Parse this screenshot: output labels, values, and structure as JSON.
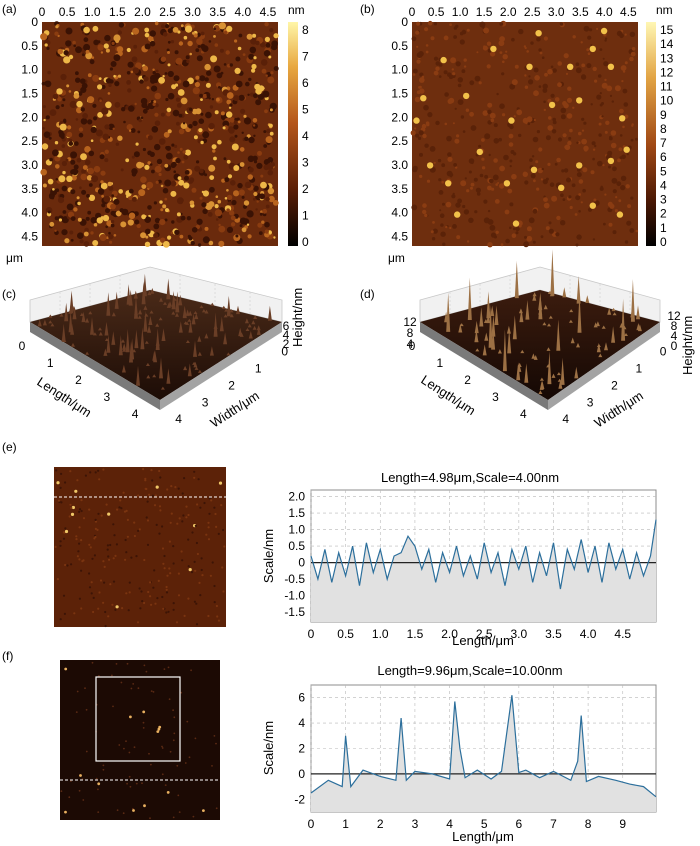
{
  "panels": {
    "a": {
      "label": "(a)",
      "x_ticks": [
        "0",
        "0.5",
        "1.0",
        "1.5",
        "2.0",
        "2.5",
        "3.0",
        "3.5",
        "4.0",
        "4.5"
      ],
      "y_ticks": [
        "0",
        "0.5",
        "1.0",
        "1.5",
        "2.0",
        "2.5",
        "3.0",
        "3.5",
        "4.0",
        "4.5"
      ],
      "unit_corner": "μm",
      "colorbar_unit": "nm",
      "colorbar_ticks": [
        "8",
        "7",
        "6",
        "5",
        "4",
        "3",
        "2",
        "1",
        "0"
      ]
    },
    "b": {
      "label": "(b)",
      "x_ticks": [
        "0",
        "0.5",
        "1.0",
        "1.5",
        "2.0",
        "2.5",
        "3.0",
        "3.5",
        "4.0",
        "4.5"
      ],
      "y_ticks": [
        "0",
        "0.5",
        "1.0",
        "1.5",
        "2.0",
        "2.5",
        "3.0",
        "3.5",
        "4.0",
        "4.5"
      ],
      "unit_corner": "μm",
      "colorbar_unit": "nm",
      "colorbar_ticks": [
        "15",
        "14",
        "13",
        "12",
        "11",
        "10",
        "9",
        "8",
        "7",
        "6",
        "5",
        "4",
        "3",
        "2",
        "1",
        "0"
      ]
    },
    "c": {
      "label": "(c)",
      "length_ticks": [
        "0",
        "1",
        "2",
        "3",
        "4"
      ],
      "width_ticks": [
        "4",
        "3",
        "2",
        "1",
        "0"
      ],
      "height_ticks": [
        "6",
        "4",
        "2"
      ],
      "length_label": "Length/μm",
      "width_label": "Width/μm",
      "height_label": "Height/nm"
    },
    "d": {
      "label": "(d)",
      "length_ticks": [
        "0",
        "1",
        "2",
        "3",
        "4"
      ],
      "width_ticks": [
        "4",
        "3",
        "2",
        "1",
        "0"
      ],
      "height_ticks": [
        "12",
        "8",
        "4"
      ],
      "height_ticks_right": [
        "12",
        "8",
        "4",
        "0"
      ],
      "length_label": "Length/μm",
      "width_label": "Width/μm",
      "height_label": "Height/nm"
    },
    "e": {
      "label": "(e)",
      "title": "Length=4.98μm,Scale=4.00nm",
      "xlabel": "Length/μm",
      "ylabel": "Scale/nm",
      "x_ticks": [
        "0",
        "0.5",
        "1.0",
        "1.5",
        "2.0",
        "2.5",
        "3.0",
        "3.5",
        "4.0",
        "4.5"
      ],
      "y_ticks": [
        "2.0",
        "1.5",
        "1.0",
        "0.5",
        "0",
        "-0.5",
        "-1.0",
        "-1.5"
      ]
    },
    "f": {
      "label": "(f)",
      "title": "Length=9.96μm,Scale=10.00nm",
      "xlabel": "Length/μm",
      "ylabel": "Scale/nm",
      "x_ticks": [
        "0",
        "1",
        "2",
        "3",
        "4",
        "5",
        "6",
        "7",
        "8",
        "9"
      ],
      "y_ticks": [
        "6",
        "4",
        "2",
        "0",
        "-2"
      ]
    }
  },
  "colors": {
    "afm_dark": "#2a0f05",
    "afm_mid": "#8a3d10",
    "afm_bright": "#f4c040",
    "profile_line": "#2c6f9c",
    "profile_fill": "#e1e1e1"
  },
  "chart_data": [
    {
      "panel": "a",
      "type": "heatmap",
      "x_range_um": [
        0,
        4.7
      ],
      "y_range_um": [
        0,
        4.7
      ],
      "z_range_nm": [
        0,
        8.5
      ]
    },
    {
      "panel": "b",
      "type": "heatmap",
      "x_range_um": [
        0,
        4.7
      ],
      "y_range_um": [
        0,
        4.7
      ],
      "z_range_nm": [
        0,
        15.5
      ]
    },
    {
      "panel": "e",
      "type": "line",
      "xlabel": "Length/μm",
      "ylabel": "Scale/nm",
      "xlim": [
        0,
        4.98
      ],
      "ylim": [
        -1.8,
        2.2
      ],
      "x": [
        0,
        0.1,
        0.2,
        0.3,
        0.4,
        0.5,
        0.6,
        0.7,
        0.8,
        0.9,
        1.0,
        1.1,
        1.2,
        1.3,
        1.4,
        1.5,
        1.6,
        1.7,
        1.8,
        1.9,
        2.0,
        2.1,
        2.2,
        2.3,
        2.4,
        2.5,
        2.6,
        2.7,
        2.8,
        2.9,
        3.0,
        3.1,
        3.2,
        3.3,
        3.4,
        3.5,
        3.6,
        3.7,
        3.8,
        3.9,
        4.0,
        4.1,
        4.2,
        4.3,
        4.4,
        4.5,
        4.6,
        4.7,
        4.8,
        4.9,
        4.98
      ],
      "y": [
        0.2,
        -0.5,
        0.4,
        -0.6,
        0.3,
        -0.4,
        0.5,
        -0.7,
        0.6,
        -0.3,
        0.4,
        -0.5,
        0.2,
        0.3,
        0.8,
        0.5,
        -0.2,
        0.4,
        -0.6,
        0.3,
        -0.3,
        0.5,
        -0.4,
        0.2,
        -0.5,
        0.6,
        -0.3,
        0.3,
        -0.7,
        0.4,
        -0.2,
        0.5,
        -0.6,
        0.3,
        -0.4,
        0.6,
        -0.8,
        0.4,
        -0.2,
        0.7,
        -0.3,
        0.5,
        -0.6,
        0.6,
        -0.2,
        0.4,
        -0.5,
        0.3,
        -0.4,
        0.2,
        1.3
      ]
    },
    {
      "panel": "f",
      "type": "line",
      "xlabel": "Length/μm",
      "ylabel": "Scale/nm",
      "xlim": [
        0,
        9.96
      ],
      "ylim": [
        -3,
        7
      ],
      "x": [
        0,
        0.5,
        0.9,
        1.0,
        1.15,
        1.5,
        2.0,
        2.45,
        2.6,
        2.75,
        3.0,
        3.5,
        4.0,
        4.15,
        4.3,
        4.45,
        4.8,
        5.2,
        5.5,
        5.8,
        6.0,
        6.2,
        6.6,
        7.0,
        7.5,
        7.7,
        7.8,
        7.95,
        8.3,
        8.8,
        9.2,
        9.6,
        9.96
      ],
      "y": [
        -1.5,
        -0.5,
        -1.0,
        3.0,
        -1.0,
        0.3,
        -0.2,
        -0.5,
        4.4,
        -0.5,
        0.2,
        0.0,
        -0.4,
        5.7,
        2.0,
        -0.3,
        0.3,
        -0.4,
        0.2,
        6.2,
        0.1,
        0.3,
        -0.3,
        0.2,
        -0.5,
        1.0,
        4.6,
        -0.6,
        -0.2,
        -0.5,
        -0.8,
        -1.0,
        -1.8
      ]
    }
  ]
}
